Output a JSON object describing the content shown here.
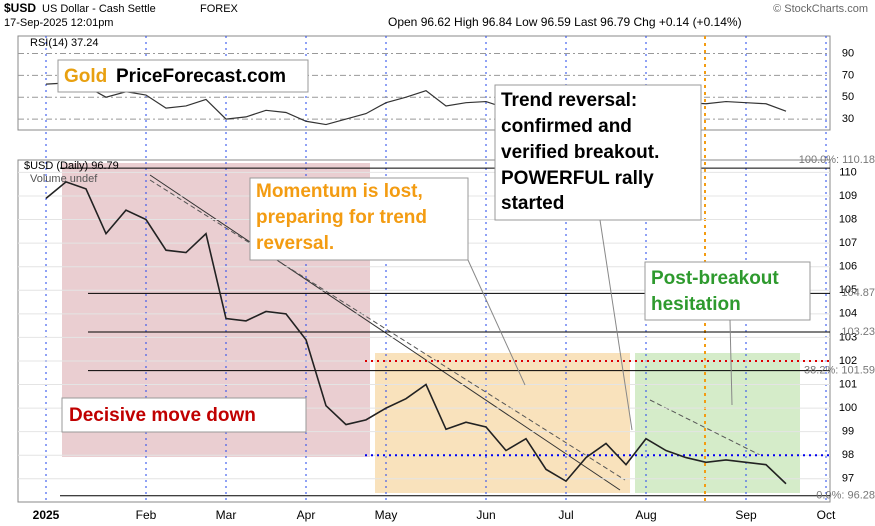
{
  "header": {
    "symbol": "$USD",
    "name": "US Dollar - Cash Settle",
    "exchange": "FOREX",
    "datetime": "17-Sep-2025 12:01pm",
    "quote": "Open 96.62   High 96.84   Low 96.59   Last 96.79   Chg +0.14 (+0.14%)",
    "credit": "© StockCharts.com"
  },
  "logo": {
    "gold": "Gold",
    "site": "PriceForecast.com"
  },
  "annotations": {
    "decisive": "Decisive move down",
    "momentum": [
      "Momentum is lost,",
      "preparing for trend",
      "reversal."
    ],
    "trend": [
      "Trend reversal:",
      "confirmed and",
      "verified breakout.",
      "POWERFUL rally",
      "started"
    ],
    "post": [
      "Post-breakout",
      "hesitation"
    ]
  },
  "chart_data": [
    {
      "type": "line",
      "title": "RSI(14) 37.24",
      "color": "#333333",
      "values": [
        62,
        63,
        60,
        50,
        55,
        52,
        40,
        42,
        48,
        30,
        32,
        38,
        36,
        28,
        25,
        30,
        35,
        45,
        50,
        56,
        42,
        45,
        46,
        40,
        44,
        35,
        32,
        45,
        50,
        42,
        55,
        47,
        45,
        44,
        46,
        45,
        44,
        37.24,
        null,
        null
      ],
      "ylim": [
        20,
        106
      ],
      "yticks": [
        30,
        50,
        70,
        90
      ]
    },
    {
      "type": "line",
      "title": "$USD (Daily) 96.79",
      "subtitle": "Volume undef",
      "color": "#222222",
      "categories": [
        "2025",
        null,
        null,
        null,
        null,
        "Feb",
        null,
        null,
        null,
        "Mar",
        null,
        null,
        null,
        "Apr",
        null,
        null,
        null,
        "May",
        null,
        null,
        null,
        null,
        "Jun",
        null,
        null,
        null,
        "Jul",
        null,
        null,
        null,
        "Aug",
        null,
        null,
        null,
        null,
        "Sep",
        null,
        null,
        null,
        "Oct"
      ],
      "values": [
        108.9,
        109.6,
        109.3,
        107.4,
        108.4,
        108.0,
        106.7,
        106.6,
        107.4,
        103.8,
        103.7,
        104.1,
        104.0,
        102.9,
        100.1,
        99.3,
        99.5,
        100.0,
        100.4,
        101.0,
        99.1,
        99.4,
        99.2,
        98.2,
        98.7,
        97.4,
        96.9,
        97.9,
        98.5,
        97.6,
        98.7,
        98.2,
        97.9,
        97.7,
        97.8,
        97.7,
        97.6,
        96.79,
        null,
        null
      ],
      "ylim": [
        96.1,
        110.4
      ],
      "yticks": [
        97,
        98,
        99,
        100,
        101,
        102,
        103,
        104,
        105,
        106,
        107,
        108,
        109,
        110
      ],
      "reference_lines": [
        {
          "value": 110.18,
          "label": "100.0%: 110.18"
        },
        {
          "value": 104.87
        },
        {
          "value": 103.23
        },
        {
          "value": 101.59,
          "label": "38.2%: 101.59"
        },
        {
          "value": 96.28,
          "label": "0.0%: 96.28"
        }
      ],
      "levels": [
        {
          "value": 102.0,
          "color": "#dd0000"
        },
        {
          "value": 98.0,
          "color": "#0000ee"
        }
      ]
    }
  ]
}
